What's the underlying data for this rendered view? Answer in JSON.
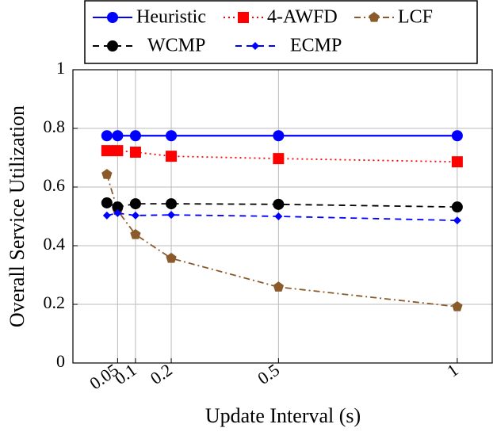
{
  "chart_data": {
    "type": "line",
    "xlabel": "Update Interval (s)",
    "ylabel": "Overall Service Utilization",
    "x": [
      0.02,
      0.05,
      0.1,
      0.2,
      0.5,
      1
    ],
    "xlim": [
      -0.075,
      1.1
    ],
    "ylim": [
      0,
      1
    ],
    "xticks": [
      0.05,
      0.1,
      0.2,
      0.5,
      1
    ],
    "yticks": [
      0,
      0.2,
      0.4,
      0.6,
      0.8,
      1
    ],
    "grid": true,
    "legend": "top",
    "series": [
      {
        "name": "Heuristic",
        "color": "#0000ff",
        "dash": "solid",
        "marker": "circle",
        "values": [
          0.775,
          0.775,
          0.775,
          0.775,
          0.775,
          0.775
        ]
      },
      {
        "name": "4-AWFD",
        "color": "#ff0000",
        "dash": "dotted",
        "marker": "square",
        "values": [
          0.724,
          0.724,
          0.719,
          0.705,
          0.697,
          0.686
        ]
      },
      {
        "name": "LCF",
        "color": "#8b5a2b",
        "dash": "dashdot",
        "marker": "pentagon",
        "values": [
          0.643,
          0.52,
          0.438,
          0.357,
          0.259,
          0.192
        ]
      },
      {
        "name": "WCMP",
        "color": "#000000",
        "dash": "dashed",
        "marker": "circle",
        "values": [
          0.546,
          0.532,
          0.543,
          0.543,
          0.541,
          0.532
        ]
      },
      {
        "name": "ECMP",
        "color": "#0000ff",
        "dash": "dashed",
        "marker": "diamond",
        "values": [
          0.503,
          0.511,
          0.503,
          0.505,
          0.5,
          0.486
        ]
      }
    ]
  }
}
